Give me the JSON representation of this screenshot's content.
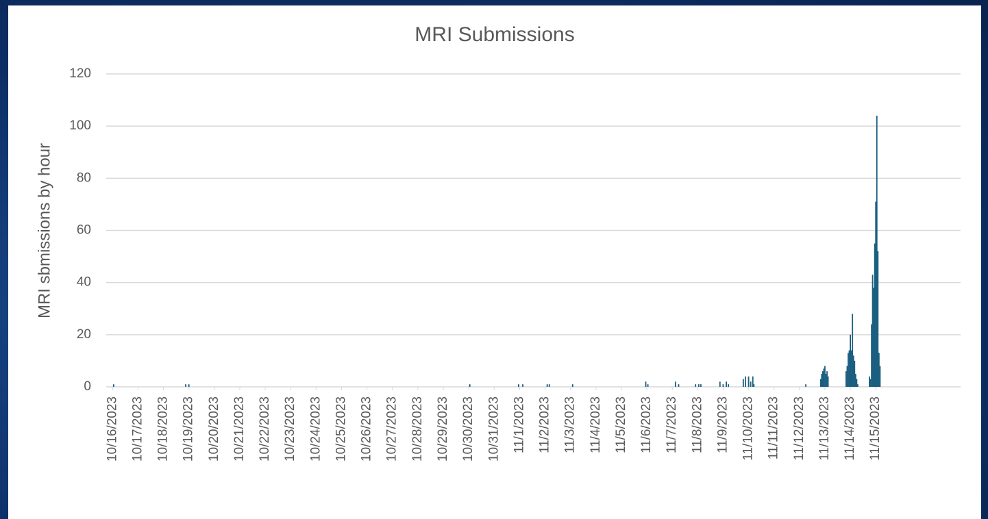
{
  "chart_data": {
    "type": "bar",
    "title": "MRI Submissions",
    "y_label": "MRI sbmissions by hour",
    "color": "#1b5e80",
    "grid": true,
    "ylim": [
      0,
      120
    ],
    "yticks": [
      0,
      20,
      40,
      60,
      80,
      100,
      120
    ],
    "xlim": [
      -6,
      800
    ],
    "xticks": [
      {
        "value": 0,
        "label": "10/16/2023"
      },
      {
        "value": 24,
        "label": "10/17/2023"
      },
      {
        "value": 48,
        "label": "10/18/2023"
      },
      {
        "value": 72,
        "label": "10/19/2023"
      },
      {
        "value": 96,
        "label": "10/20/2023"
      },
      {
        "value": 120,
        "label": "10/21/2023"
      },
      {
        "value": 144,
        "label": "10/22/2023"
      },
      {
        "value": 168,
        "label": "10/23/2023"
      },
      {
        "value": 192,
        "label": "10/24/2023"
      },
      {
        "value": 216,
        "label": "10/25/2023"
      },
      {
        "value": 240,
        "label": "10/26/2023"
      },
      {
        "value": 264,
        "label": "10/27/2023"
      },
      {
        "value": 288,
        "label": "10/28/2023"
      },
      {
        "value": 312,
        "label": "10/29/2023"
      },
      {
        "value": 336,
        "label": "10/30/2023"
      },
      {
        "value": 360,
        "label": "10/31/2023"
      },
      {
        "value": 384,
        "label": "11/1/2023"
      },
      {
        "value": 408,
        "label": "11/2/2023"
      },
      {
        "value": 432,
        "label": "11/3/2023"
      },
      {
        "value": 456,
        "label": "11/4/2023"
      },
      {
        "value": 480,
        "label": "11/5/2023"
      },
      {
        "value": 504,
        "label": "11/6/2023"
      },
      {
        "value": 528,
        "label": "11/7/2023"
      },
      {
        "value": 552,
        "label": "11/8/2023"
      },
      {
        "value": 576,
        "label": "11/9/2023"
      },
      {
        "value": 600,
        "label": "11/10/2023"
      },
      {
        "value": 624,
        "label": "11/11/2023"
      },
      {
        "value": 648,
        "label": "11/12/2023"
      },
      {
        "value": 672,
        "label": "11/13/2023"
      },
      {
        "value": 696,
        "label": "11/14/2023"
      },
      {
        "value": 720,
        "label": "11/15/2023"
      }
    ],
    "x": [
      1,
      69,
      72,
      337,
      383,
      387,
      410,
      412,
      434,
      503,
      505,
      531,
      534,
      550,
      553,
      555,
      573,
      576,
      579,
      581,
      595,
      597,
      600,
      602,
      604,
      605,
      654,
      668,
      669,
      670,
      671,
      672,
      673,
      674,
      675,
      692,
      693,
      694,
      695,
      696,
      697,
      698,
      699,
      700,
      701,
      702,
      703,
      714,
      715,
      716,
      717,
      718,
      719,
      720,
      721,
      722,
      723,
      724
    ],
    "values": [
      1,
      1,
      1,
      1,
      1,
      1,
      1,
      1,
      1,
      2,
      1,
      2,
      1,
      1,
      1,
      1,
      2,
      1,
      2,
      1,
      3,
      4,
      4,
      2,
      4,
      1,
      1,
      3,
      5,
      6,
      7,
      8,
      5,
      6,
      4,
      6,
      8,
      13,
      14,
      20,
      14,
      28,
      12,
      10,
      5,
      3,
      1,
      4,
      3,
      24,
      43,
      38,
      55,
      71,
      104,
      52,
      13,
      8
    ]
  }
}
